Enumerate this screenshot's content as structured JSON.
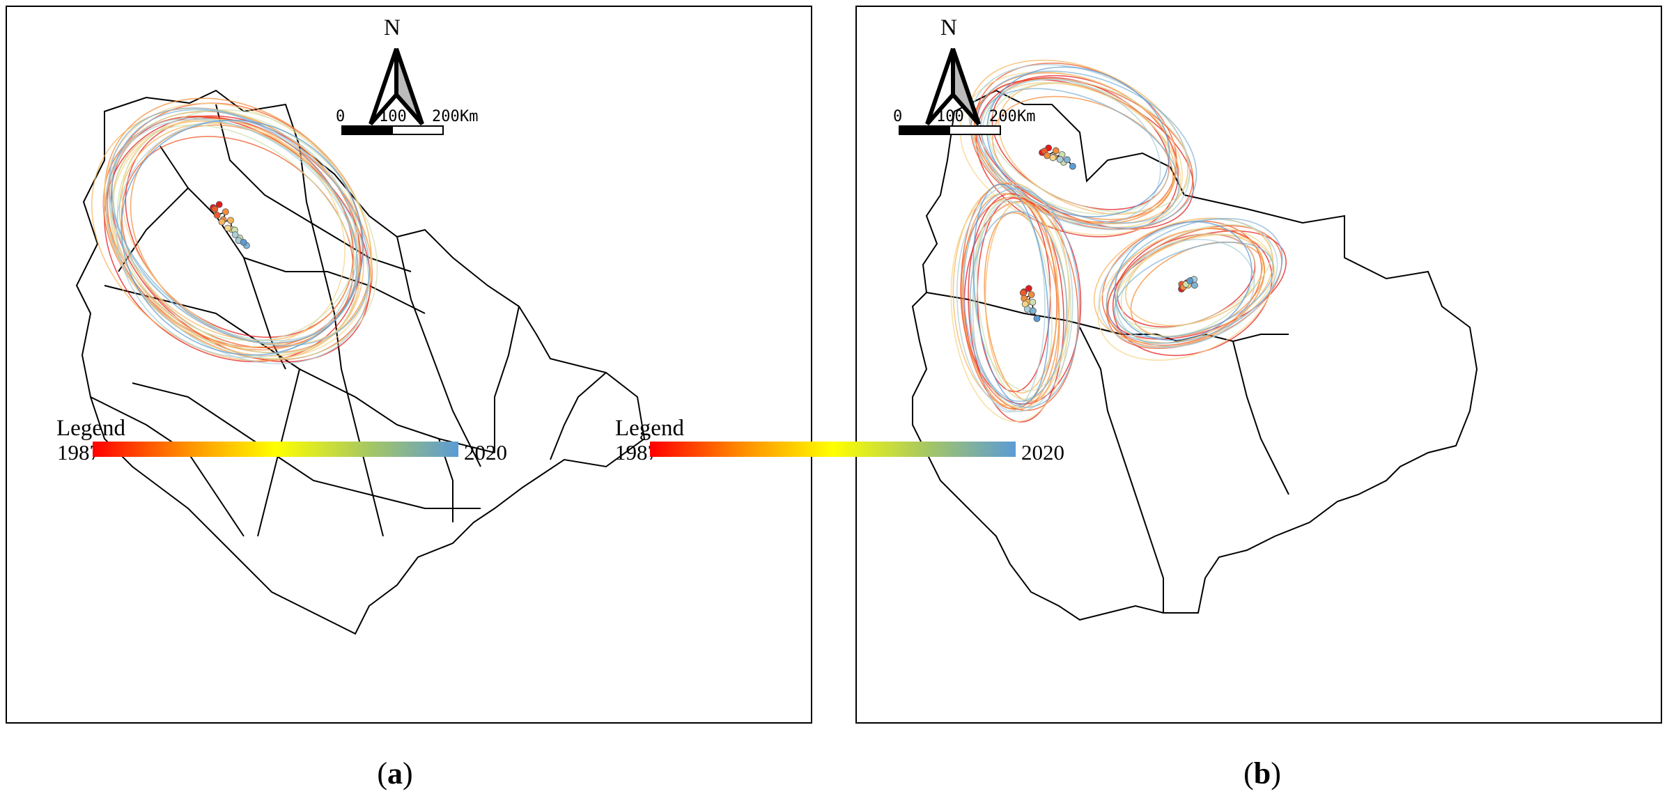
{
  "panels": [
    {
      "id": "a",
      "caption_letter": "a",
      "north_label": "N",
      "scale": {
        "ticks": [
          "0",
          "100",
          "200"
        ],
        "unit": "Km"
      },
      "legend": {
        "title": "Legend",
        "start_year": "1987",
        "end_year": "2020",
        "gradient": [
          "#ff0000",
          "#ff8c00",
          "#ffff00",
          "#a8c860",
          "#5b9bd5"
        ]
      }
    },
    {
      "id": "b",
      "caption_letter": "b",
      "north_label": "N",
      "scale": {
        "ticks": [
          "0",
          "100",
          "200"
        ],
        "unit": "Km"
      },
      "legend": {
        "title": "Legend",
        "start_year": "1987",
        "end_year": "2020",
        "gradient": [
          "#ff0000",
          "#ff8c00",
          "#ffff00",
          "#a8c860",
          "#5b9bd5"
        ]
      }
    }
  ]
}
